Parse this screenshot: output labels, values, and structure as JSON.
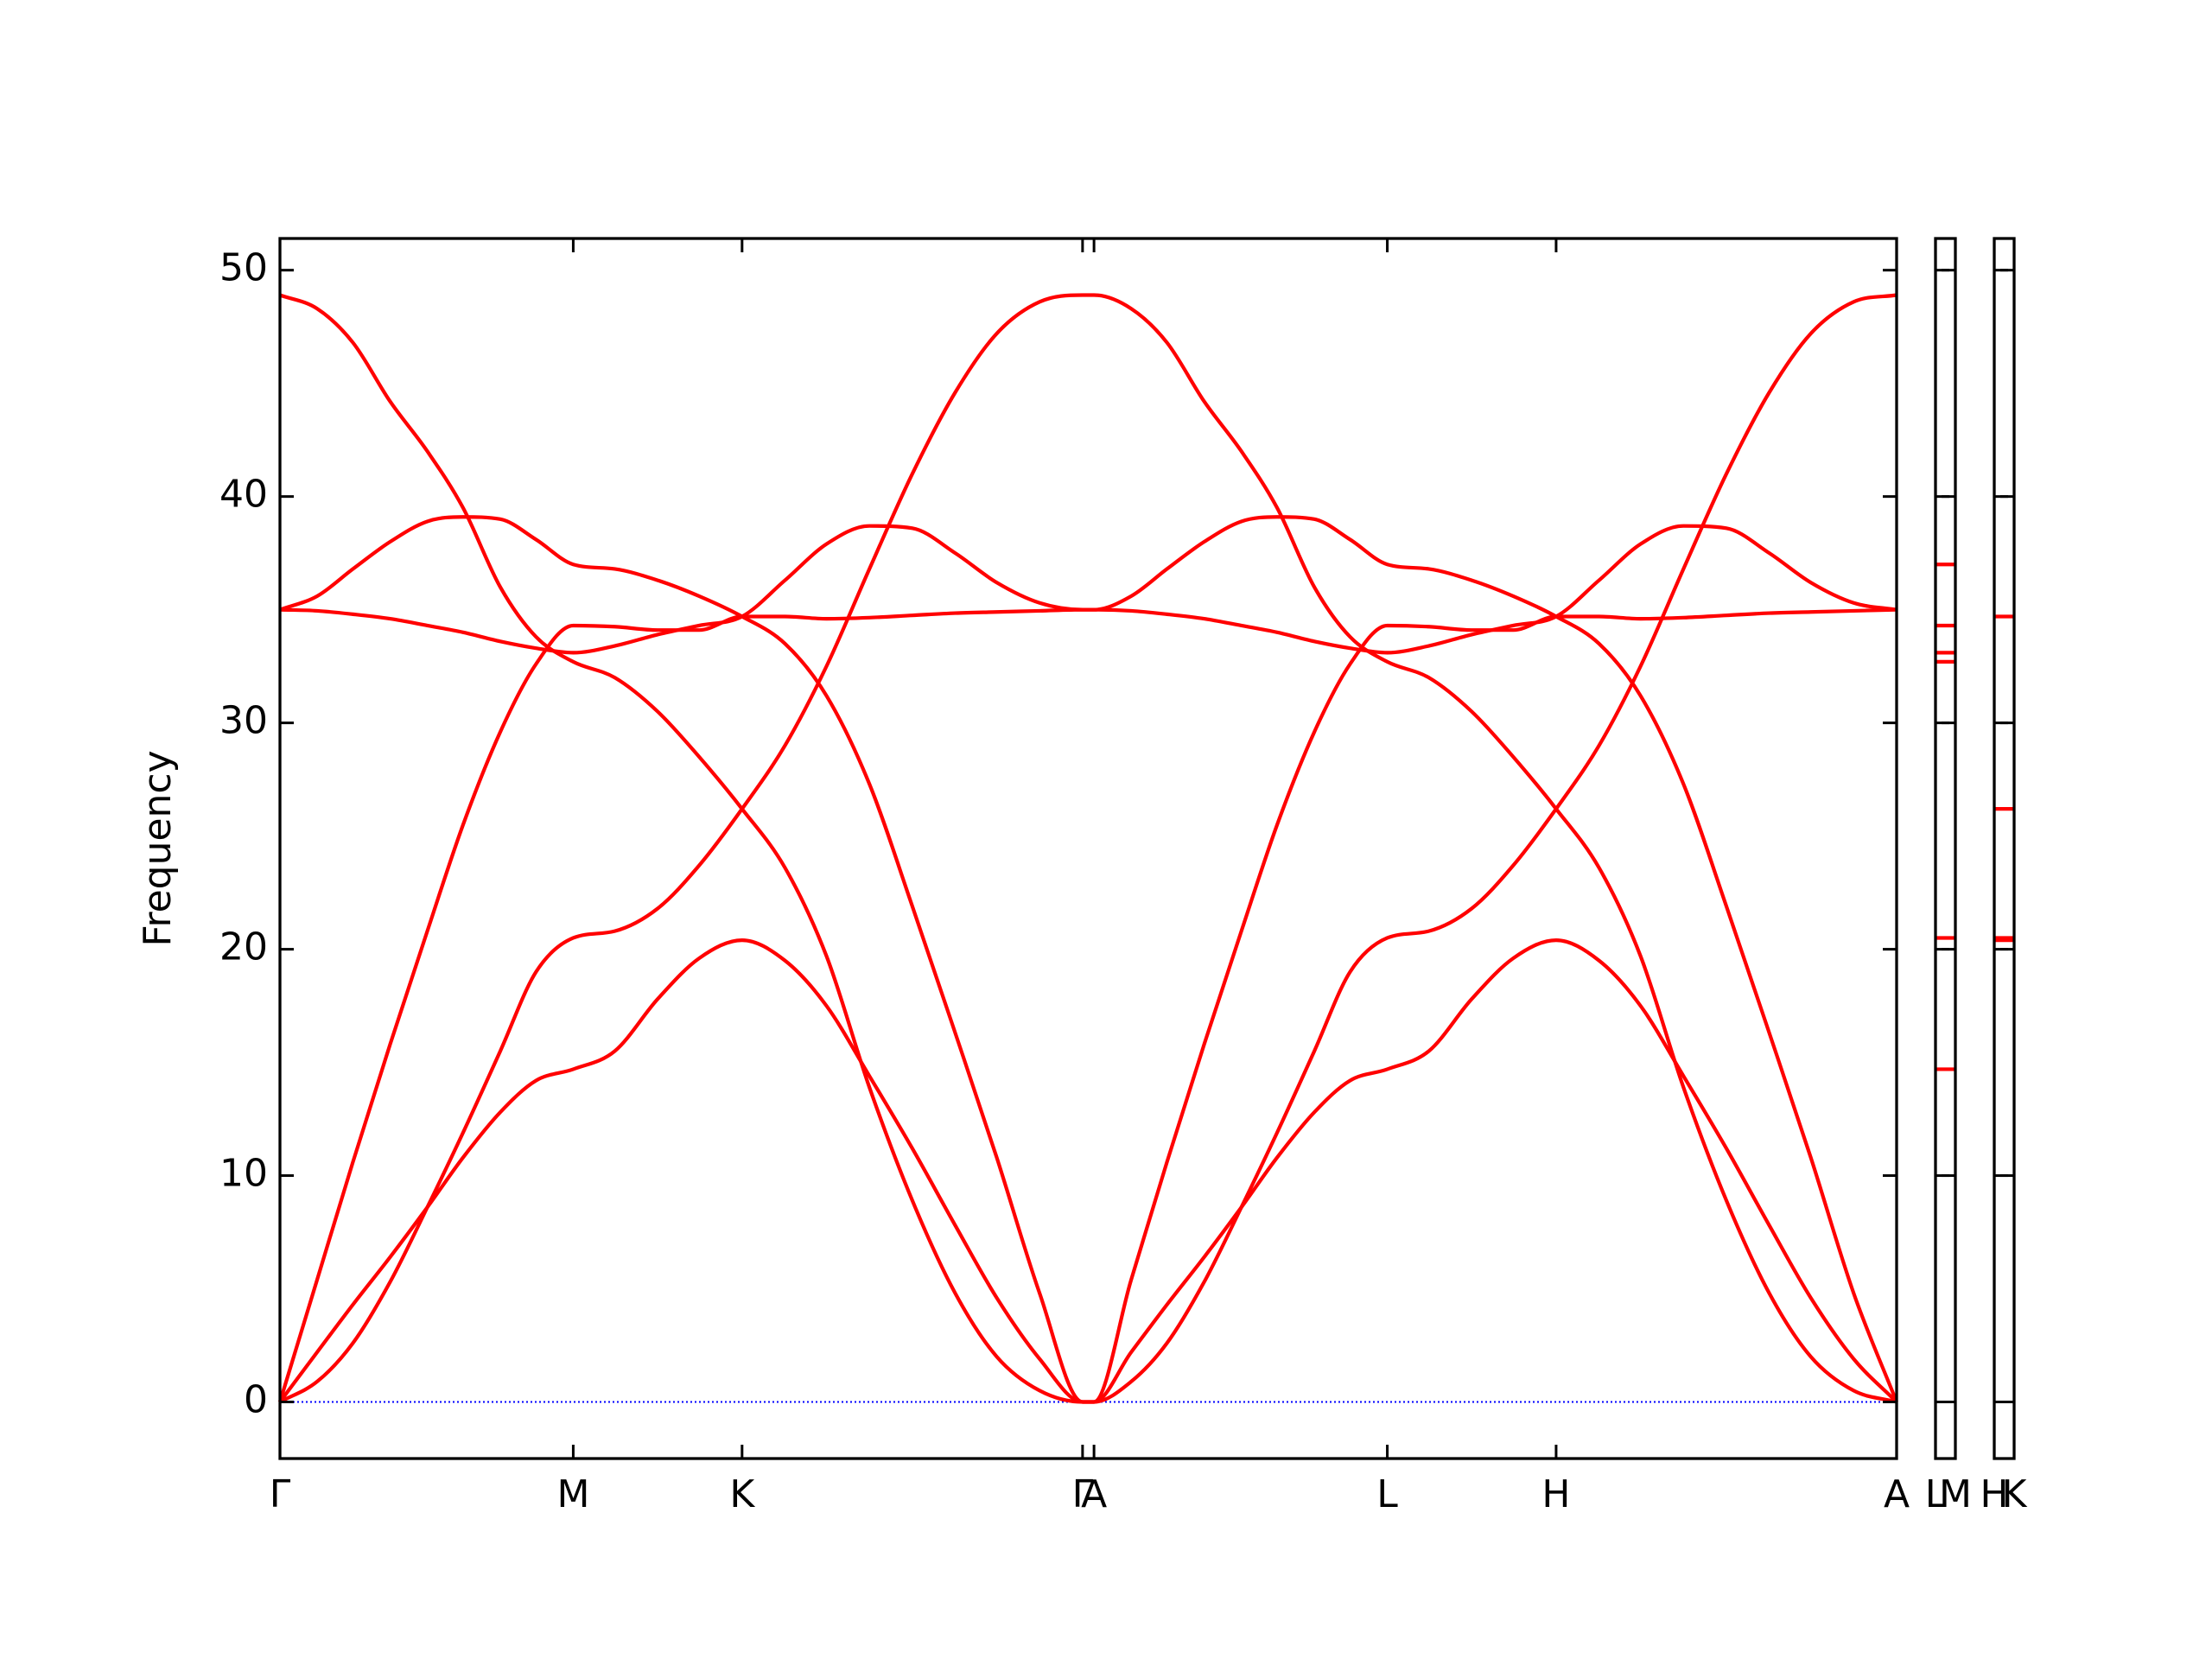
{
  "chart_data": [
    {
      "type": "line",
      "y_label": "Frequency",
      "x": [
        0,
        0.026,
        0.051,
        0.077,
        0.103,
        0.128,
        0.154,
        0.179,
        0.205,
        0.234,
        0.264,
        0.293,
        0.323,
        0.353,
        0.382,
        0.412,
        0.442,
        0.472,
        0.501,
        0.531,
        0.561,
        0.569,
        0.595,
        0.62,
        0.646,
        0.672,
        0.697,
        0.723,
        0.748,
        0.774,
        0.803,
        0.833,
        0.862,
        0.892,
        0.922,
        0.951,
        0.981,
        1.011,
        1.041,
        1.07,
        1.1,
        1.13
      ],
      "xlim": [
        0,
        1.13
      ],
      "xticks": [
        {
          "value": 0,
          "label": "Γ"
        },
        {
          "value": 0.205,
          "label": "M"
        },
        {
          "value": 0.323,
          "label": "K"
        },
        {
          "value": 0.561,
          "label": "Γ"
        },
        {
          "value": 0.569,
          "label": "A"
        },
        {
          "value": 0.774,
          "label": "L"
        },
        {
          "value": 0.892,
          "label": "H"
        },
        {
          "value": 1.13,
          "label": "A"
        }
      ],
      "ylim": [
        -2.5,
        51.4
      ],
      "yticks": [
        0,
        10,
        20,
        30,
        40,
        50
      ],
      "show_ytick_labels": true,
      "hlines": [
        {
          "y": 0,
          "color": "#0000ff",
          "style": "dotted"
        }
      ],
      "series": [
        {
          "color": "#ff0000",
          "values": [
            0,
            5.4,
            10.6,
            15.8,
            20.8,
            25.5,
            29.6,
            32.6,
            34.3,
            34.25,
            34.1,
            34.1,
            34.7,
            34.7,
            34.6,
            34.65,
            34.75,
            34.85,
            34.9,
            34.95,
            35,
            35,
            34.95,
            34.8,
            34.6,
            34.3,
            34,
            33.6,
            33.3,
            33.1,
            33.4,
            33.9,
            34.3,
            34.7,
            36.3,
            37.9,
            38.7,
            38.6,
            37.5,
            36.2,
            35.3,
            35
          ]
        },
        {
          "color": "#ff0000",
          "values": [
            35,
            34.95,
            34.8,
            34.6,
            34.3,
            34,
            33.6,
            33.3,
            33.1,
            33.4,
            33.9,
            34.3,
            34.7,
            36.3,
            37.9,
            38.7,
            38.6,
            37.5,
            36.2,
            35.3,
            35,
            35,
            35.6,
            36.8,
            38,
            38.9,
            39.1,
            39,
            38.1,
            37,
            36.8,
            36.3,
            35.6,
            34.7,
            33.5,
            31.2,
            27.3,
            21.9,
            16.3,
            10.8,
            4.8,
            0
          ]
        },
        {
          "color": "#ff0000",
          "values": [
            35,
            35.6,
            36.8,
            38,
            38.9,
            39.1,
            39,
            38.1,
            37,
            36.8,
            36.3,
            35.6,
            34.7,
            33.5,
            31.2,
            27.3,
            21.9,
            16.3,
            10.8,
            4.8,
            0,
            0,
            5.4,
            10.6,
            15.8,
            20.8,
            25.5,
            29.6,
            32.6,
            34.3,
            34.25,
            34.1,
            34.1,
            34.7,
            34.7,
            34.6,
            34.65,
            34.75,
            34.85,
            34.9,
            34.95,
            35
          ]
        },
        {
          "color": "#ff0000",
          "values": [
            48.9,
            48.3,
            46.8,
            44.2,
            42,
            39.5,
            36,
            33.8,
            32.7,
            32,
            30.5,
            28.5,
            26.2,
            23.6,
            19.7,
            13.9,
            8.9,
            4.8,
            2,
            0.5,
            0,
            0,
            0.9,
            2.6,
            5.3,
            8.6,
            11.9,
            15.5,
            19,
            20.5,
            20.8,
            21.8,
            23.7,
            26.2,
            29,
            32.5,
            36.8,
            41,
            44.6,
            47.2,
            48.6,
            48.9
          ]
        },
        {
          "color": "#ff0000",
          "values": [
            0,
            0.9,
            2.6,
            5.3,
            8.6,
            11.9,
            15.5,
            19,
            20.5,
            20.8,
            21.8,
            23.7,
            26.2,
            29,
            32.5,
            36.8,
            41,
            44.6,
            47.2,
            48.6,
            48.9,
            48.9,
            48.3,
            46.8,
            44.2,
            42,
            39.5,
            36,
            33.8,
            32.7,
            32,
            30.5,
            28.5,
            26.2,
            23.6,
            19.7,
            13.9,
            8.9,
            4.8,
            2,
            0.5,
            0
          ]
        },
        {
          "color": "#ff0000",
          "values": [
            0,
            2.2,
            4.3,
            6.4,
            8.6,
            10.8,
            12.8,
            14.2,
            14.7,
            15.5,
            17.8,
            19.6,
            20.4,
            19.5,
            17.5,
            14.4,
            11.2,
            7.8,
            4.6,
            1.9,
            0,
            0,
            2.2,
            4.3,
            6.4,
            8.6,
            10.8,
            12.8,
            14.2,
            14.7,
            15.5,
            17.8,
            19.6,
            20.4,
            19.5,
            17.5,
            14.4,
            11.2,
            7.8,
            4.6,
            1.9,
            0
          ]
        }
      ]
    },
    {
      "type": "levels",
      "xlim": [
        0,
        1
      ],
      "xticks": [
        {
          "value": 0,
          "label": "L"
        },
        {
          "value": 1,
          "label": "M"
        }
      ],
      "ylim": [
        -2.5,
        51.4
      ],
      "yticks": [
        0,
        10,
        20,
        30,
        40,
        50
      ],
      "show_ytick_labels": false,
      "color": "#ff0000",
      "values": [
        37.0,
        34.3,
        33.1,
        32.7,
        20.5,
        14.7
      ]
    },
    {
      "type": "levels",
      "xlim": [
        0,
        1
      ],
      "xticks": [
        {
          "value": 0,
          "label": "H"
        },
        {
          "value": 1,
          "label": "K"
        }
      ],
      "ylim": [
        -2.5,
        51.4
      ],
      "yticks": [
        0,
        10,
        20,
        30,
        40,
        50
      ],
      "show_ytick_labels": false,
      "color": "#ff0000",
      "values": [
        34.7,
        26.2,
        20.5,
        20.4
      ]
    }
  ]
}
